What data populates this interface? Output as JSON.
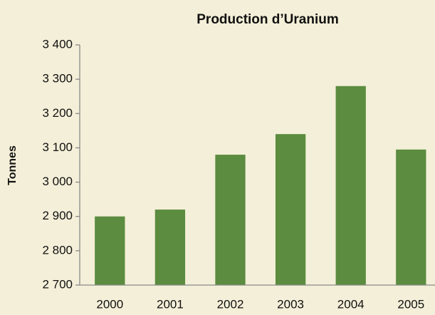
{
  "chart_data": {
    "type": "bar",
    "title": "Production d’Uranium",
    "ylabel": "Tonnes",
    "categories": [
      "2000",
      "2001",
      "2002",
      "2003",
      "2004",
      "2005"
    ],
    "values": [
      2900,
      2920,
      3080,
      3140,
      3280,
      3095
    ],
    "color": "#5b8c3f",
    "ylim": [
      2700,
      3400
    ],
    "yticks": [
      {
        "value": 2700,
        "label": "2 700"
      },
      {
        "value": 2800,
        "label": "2 800"
      },
      {
        "value": 2900,
        "label": "2 900"
      },
      {
        "value": 3000,
        "label": "3 000"
      },
      {
        "value": 3100,
        "label": "3 100"
      },
      {
        "value": 3200,
        "label": "3 200"
      },
      {
        "value": 3300,
        "label": "3 300"
      },
      {
        "value": 3400,
        "label": "3 400"
      }
    ],
    "grid": false
  }
}
